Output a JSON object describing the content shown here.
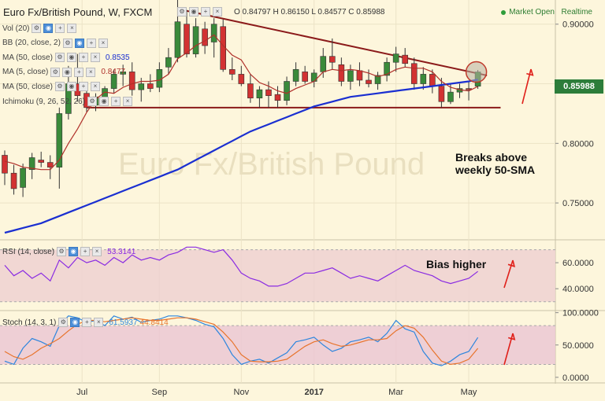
{
  "header": {
    "symbol_title": "Euro Fx/British Pound, W, FXCM",
    "ohlc_text": "O 0.84797 H 0.86150 L 0.84577 C 0.85988",
    "market_status": "Market Open",
    "realtime_label": "Realtime"
  },
  "indicators": [
    {
      "label": "Vol (20)",
      "value": "",
      "color": "#333333"
    },
    {
      "label": "BB (20, close, 2)",
      "value": "",
      "color": "#333333"
    },
    {
      "label": "MA (50, close)",
      "value": "0.8535",
      "color": "#1a2fd1"
    },
    {
      "label": "MA (5, close)",
      "value": "0.8477",
      "color": "#b0302a"
    },
    {
      "label": "MA (50, close)",
      "value": "",
      "color": "#333333"
    },
    {
      "label": "Ichimoku (9, 26, 52, 26)",
      "value": "",
      "color": "#333333"
    }
  ],
  "rsi_panel": {
    "label": "RSI (14, close)",
    "value": "53.3141",
    "color": "#8a2be2"
  },
  "stoch_panel": {
    "label": "Stoch (14, 3, 1)",
    "k_value": "61.5937",
    "d_value": "44.8414",
    "k_color": "#2e86de",
    "d_color": "#e8742c"
  },
  "annotations": {
    "breaks_line1": "Breaks above",
    "breaks_line2": "weekly 50-SMA",
    "bias": "Bias higher"
  },
  "colors": {
    "up": "#3a8a3a",
    "down": "#d23232",
    "trendline": "#8b1a1a",
    "ma50": "#1a2fd1",
    "ma5": "#b0302a",
    "arrow": "#e0201a",
    "price_badge": "#2c7d3a"
  },
  "watermark": "Euro Fx/British Pound",
  "chart_data": [
    {
      "type": "candlestick",
      "title": "Euro Fx/British Pound, W, FXCM",
      "ylim": [
        0.725,
        0.915
      ],
      "y_ticks": [
        "0.90000",
        "0.85000",
        "0.80000",
        "0.75000"
      ],
      "y_tick_values": [
        0.9,
        0.85,
        0.8,
        0.75
      ],
      "x_ticks": [
        "Jul",
        "Sep",
        "Nov",
        "2017",
        "Mar",
        "May"
      ],
      "x_tick_index": [
        8.5,
        17,
        26,
        34,
        43,
        51
      ],
      "last_price": "0.85988",
      "last_price_value": 0.85988,
      "ohlc": [
        [
          0.79,
          0.794,
          0.765,
          0.775
        ],
        [
          0.775,
          0.782,
          0.757,
          0.762
        ],
        [
          0.763,
          0.783,
          0.755,
          0.779
        ],
        [
          0.778,
          0.792,
          0.77,
          0.788
        ],
        [
          0.786,
          0.793,
          0.78,
          0.784
        ],
        [
          0.784,
          0.79,
          0.77,
          0.78
        ],
        [
          0.78,
          0.83,
          0.762,
          0.825
        ],
        [
          0.825,
          0.865,
          0.82,
          0.85
        ],
        [
          0.85,
          0.875,
          0.835,
          0.84
        ],
        [
          0.842,
          0.848,
          0.826,
          0.83
        ],
        [
          0.832,
          0.842,
          0.827,
          0.839
        ],
        [
          0.838,
          0.848,
          0.833,
          0.846
        ],
        [
          0.846,
          0.862,
          0.842,
          0.858
        ],
        [
          0.858,
          0.866,
          0.848,
          0.86
        ],
        [
          0.86,
          0.868,
          0.84,
          0.845
        ],
        [
          0.845,
          0.855,
          0.835,
          0.85
        ],
        [
          0.85,
          0.858,
          0.843,
          0.846
        ],
        [
          0.847,
          0.868,
          0.843,
          0.862
        ],
        [
          0.864,
          0.88,
          0.858,
          0.872
        ],
        [
          0.872,
          0.925,
          0.868,
          0.902
        ],
        [
          0.9,
          0.912,
          0.872,
          0.875
        ],
        [
          0.875,
          0.905,
          0.872,
          0.898
        ],
        [
          0.896,
          0.902,
          0.875,
          0.882
        ],
        [
          0.885,
          0.905,
          0.872,
          0.9
        ],
        [
          0.898,
          0.904,
          0.86,
          0.862
        ],
        [
          0.862,
          0.872,
          0.853,
          0.858
        ],
        [
          0.858,
          0.865,
          0.848,
          0.85
        ],
        [
          0.85,
          0.858,
          0.834,
          0.838
        ],
        [
          0.838,
          0.848,
          0.83,
          0.845
        ],
        [
          0.845,
          0.852,
          0.83,
          0.84
        ],
        [
          0.841,
          0.848,
          0.83,
          0.836
        ],
        [
          0.836,
          0.856,
          0.832,
          0.852
        ],
        [
          0.852,
          0.868,
          0.848,
          0.862
        ],
        [
          0.86,
          0.865,
          0.85,
          0.852
        ],
        [
          0.852,
          0.862,
          0.847,
          0.859
        ],
        [
          0.86,
          0.88,
          0.855,
          0.873
        ],
        [
          0.873,
          0.888,
          0.862,
          0.868
        ],
        [
          0.866,
          0.872,
          0.848,
          0.852
        ],
        [
          0.852,
          0.866,
          0.845,
          0.861
        ],
        [
          0.861,
          0.868,
          0.848,
          0.853
        ],
        [
          0.853,
          0.862,
          0.847,
          0.85
        ],
        [
          0.85,
          0.86,
          0.845,
          0.857
        ],
        [
          0.857,
          0.872,
          0.852,
          0.868
        ],
        [
          0.868,
          0.881,
          0.86,
          0.875
        ],
        [
          0.874,
          0.88,
          0.864,
          0.867
        ],
        [
          0.867,
          0.872,
          0.845,
          0.85
        ],
        [
          0.85,
          0.864,
          0.845,
          0.858
        ],
        [
          0.858,
          0.862,
          0.842,
          0.848
        ],
        [
          0.848,
          0.855,
          0.83,
          0.835
        ],
        [
          0.835,
          0.85,
          0.833,
          0.843
        ],
        [
          0.843,
          0.85,
          0.838,
          0.846
        ],
        [
          0.846,
          0.852,
          0.836,
          0.845
        ],
        [
          0.84797,
          0.8615,
          0.84577,
          0.85988
        ]
      ],
      "ma5": [
        0.785,
        0.783,
        0.78,
        0.779,
        0.778,
        0.778,
        0.786,
        0.8,
        0.812,
        0.826,
        0.837,
        0.843,
        0.842,
        0.847,
        0.85,
        0.852,
        0.852,
        0.853,
        0.858,
        0.871,
        0.876,
        0.882,
        0.886,
        0.891,
        0.882,
        0.874,
        0.87,
        0.858,
        0.851,
        0.848,
        0.844,
        0.842,
        0.846,
        0.849,
        0.852,
        0.86,
        0.862,
        0.861,
        0.862,
        0.861,
        0.859,
        0.856,
        0.858,
        0.862,
        0.864,
        0.863,
        0.863,
        0.86,
        0.852,
        0.847,
        0.845,
        0.844,
        0.8477
      ],
      "ma50": [
        0.725,
        0.727,
        0.729,
        0.731,
        0.733,
        0.736,
        0.739,
        0.742,
        0.745,
        0.748,
        0.751,
        0.754,
        0.757,
        0.76,
        0.763,
        0.766,
        0.769,
        0.772,
        0.775,
        0.778,
        0.782,
        0.786,
        0.79,
        0.794,
        0.798,
        0.802,
        0.806,
        0.81,
        0.813,
        0.816,
        0.819,
        0.822,
        0.825,
        0.828,
        0.831,
        0.833,
        0.835,
        0.837,
        0.839,
        0.84,
        0.841,
        0.842,
        0.843,
        0.844,
        0.845,
        0.846,
        0.847,
        0.848,
        0.849,
        0.85,
        0.851,
        0.852,
        0.8535
      ],
      "triangle_upper": [
        [
          19.5,
          0.912
        ],
        [
          53,
          0.857
        ]
      ],
      "triangle_lower": [
        [
          9,
          0.83
        ],
        [
          54.5,
          0.83
        ]
      ]
    },
    {
      "type": "line",
      "title": "RSI (14, close)",
      "ylim": [
        25,
        77
      ],
      "y_ticks": [
        "60.0000",
        "40.0000"
      ],
      "y_tick_values": [
        60,
        40
      ],
      "bands": [
        30,
        70
      ],
      "series": [
        {
          "name": "RSI",
          "values": [
            58,
            50,
            54,
            48,
            52,
            46,
            62,
            56,
            64,
            60,
            62,
            58,
            64,
            60,
            66,
            62,
            64,
            62,
            66,
            68,
            72,
            72,
            70,
            68,
            70,
            62,
            52,
            48,
            46,
            42,
            42,
            44,
            48,
            52,
            52,
            54,
            56,
            52,
            48,
            50,
            48,
            46,
            50,
            54,
            58,
            54,
            52,
            50,
            46,
            44,
            46,
            48,
            53.3141
          ]
        }
      ]
    },
    {
      "type": "line",
      "title": "Stoch (14, 3, 1)",
      "ylim": [
        -5,
        102
      ],
      "y_ticks": [
        "100.0000",
        "50.0000",
        "0.0000"
      ],
      "y_tick_values": [
        100,
        50,
        0
      ],
      "bands": [
        20,
        80
      ],
      "series": [
        {
          "name": "%K",
          "values": [
            25,
            20,
            45,
            60,
            55,
            48,
            80,
            95,
            92,
            85,
            88,
            80,
            95,
            90,
            93,
            85,
            88,
            90,
            95,
            95,
            92,
            88,
            82,
            78,
            60,
            35,
            20,
            25,
            28,
            22,
            30,
            38,
            55,
            58,
            62,
            50,
            40,
            45,
            55,
            58,
            62,
            55,
            68,
            88,
            75,
            70,
            40,
            22,
            18,
            25,
            35,
            40,
            61.5937
          ]
        },
        {
          "name": "%D",
          "values": [
            40,
            32,
            28,
            35,
            45,
            52,
            60,
            72,
            82,
            88,
            88,
            86,
            88,
            90,
            92,
            90,
            88,
            88,
            90,
            92,
            92,
            90,
            86,
            82,
            70,
            55,
            35,
            25,
            24,
            24,
            25,
            28,
            38,
            48,
            55,
            58,
            52,
            48,
            50,
            54,
            58,
            58,
            60,
            72,
            80,
            76,
            62,
            42,
            25,
            20,
            22,
            28,
            44.8414
          ]
        }
      ]
    }
  ]
}
